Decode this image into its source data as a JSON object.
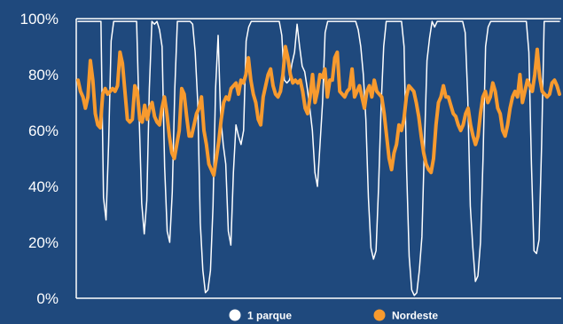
{
  "chart_data": {
    "type": "line",
    "title": "",
    "xlabel": "",
    "ylabel": "",
    "ylim": [
      0,
      100
    ],
    "y_tick_labels": [
      "0%",
      "20%",
      "40%",
      "60%",
      "80%",
      "100%"
    ],
    "grid": false,
    "legend_position": "bottom",
    "series": [
      {
        "name": "1 parque",
        "color": "#ffffff",
        "values": [
          99,
          99,
          99,
          99,
          99,
          99,
          99,
          99,
          99,
          99,
          36,
          28,
          55,
          92,
          99,
          99,
          99,
          99,
          99,
          99,
          99,
          99,
          99,
          99,
          65,
          34,
          23,
          35,
          75,
          99,
          98,
          99,
          96,
          90,
          47,
          24,
          20,
          38,
          75,
          99,
          99,
          99,
          99,
          99,
          99,
          98,
          88,
          70,
          27,
          10,
          2,
          3,
          10,
          33,
          75,
          94,
          65,
          55,
          48,
          24,
          19,
          45,
          62,
          58,
          55,
          60,
          92,
          97,
          99,
          99,
          99,
          99,
          99,
          99,
          99,
          99,
          99,
          99,
          99,
          99,
          94,
          78,
          77,
          78,
          84,
          88,
          98,
          90,
          83,
          81,
          75,
          68,
          60,
          45,
          40,
          55,
          70,
          95,
          99,
          99,
          99,
          99,
          99,
          99,
          99,
          99,
          99,
          99,
          99,
          99,
          96,
          90,
          80,
          64,
          36,
          18,
          14,
          17,
          40,
          69,
          90,
          99,
          99,
          99,
          99,
          99,
          99,
          99,
          90,
          46,
          15,
          3,
          1,
          2,
          10,
          22,
          55,
          85,
          93,
          99,
          97,
          99,
          99,
          99,
          99,
          99,
          99,
          99,
          99,
          99,
          99,
          99,
          95,
          72,
          33,
          18,
          6,
          8,
          20,
          50,
          90,
          97,
          99,
          99,
          99,
          99,
          99,
          99,
          99,
          99,
          99,
          99,
          99,
          99,
          99,
          99,
          99,
          88,
          48,
          17,
          16,
          21,
          55,
          99,
          99,
          99,
          99,
          99,
          99,
          99
        ]
      },
      {
        "name": "Nordeste",
        "color": "#f79a2e",
        "values": [
          78,
          74,
          72,
          68,
          72,
          85,
          78,
          66,
          62,
          61,
          73,
          75,
          73,
          74,
          75,
          74,
          76,
          88,
          84,
          74,
          64,
          63,
          64,
          76,
          74,
          64,
          63,
          69,
          64,
          68,
          70,
          65,
          63,
          62,
          68,
          72,
          66,
          58,
          52,
          50,
          55,
          60,
          75,
          73,
          65,
          58,
          58,
          62,
          66,
          68,
          72,
          60,
          55,
          48,
          46,
          44,
          50,
          56,
          64,
          70,
          72,
          71,
          75,
          76,
          77,
          73,
          78,
          77,
          80,
          86,
          78,
          73,
          70,
          64,
          62,
          72,
          76,
          80,
          82,
          76,
          73,
          72,
          74,
          80,
          90,
          86,
          80,
          77,
          78,
          77,
          78,
          74,
          68,
          66,
          72,
          80,
          70,
          74,
          80,
          79,
          82,
          72,
          78,
          78,
          86,
          88,
          74,
          73,
          72,
          74,
          75,
          82,
          72,
          74,
          76,
          72,
          68,
          74,
          76,
          72,
          78,
          74,
          73,
          72,
          66,
          58,
          50,
          46,
          52,
          55,
          62,
          60,
          64,
          72,
          76,
          75,
          74,
          70,
          65,
          58,
          52,
          48,
          46,
          45,
          50,
          62,
          70,
          72,
          76,
          72,
          72,
          69,
          66,
          65,
          62,
          60,
          62,
          66,
          68,
          62,
          58,
          55,
          58,
          66,
          72,
          74,
          70,
          72,
          77,
          74,
          68,
          66,
          60,
          58,
          62,
          68,
          72,
          74,
          72,
          80,
          70,
          74,
          78,
          76,
          74,
          80,
          89,
          79,
          74,
          73,
          72,
          73,
          77,
          78,
          76,
          73
        ]
      }
    ]
  }
}
